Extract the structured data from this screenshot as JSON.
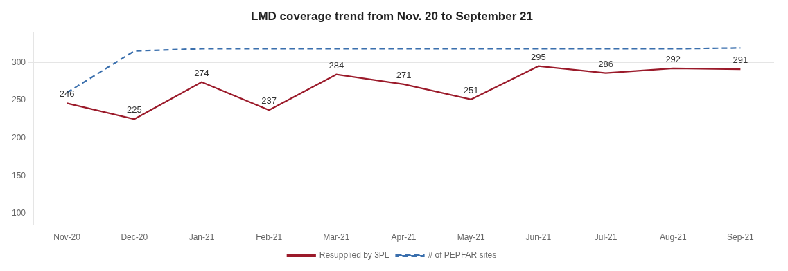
{
  "chart_data": {
    "type": "line",
    "title": "LMD coverage trend from Nov. 20 to September 21",
    "categories": [
      "Nov-20",
      "Dec-20",
      "Jan-21",
      "Feb-21",
      "Mar-21",
      "Apr-21",
      "May-21",
      "Jun-21",
      "Jul-21",
      "Aug-21",
      "Sep-21"
    ],
    "series": [
      {
        "name": "Resupplied by 3PL",
        "color": "#9b1a2a",
        "line_style": "solid",
        "data_labels": true,
        "values": [
          246,
          225,
          274,
          237,
          284,
          271,
          251,
          295,
          286,
          292,
          291
        ]
      },
      {
        "name": "# of PEPFAR sites",
        "color": "#3a6fad",
        "line_style": "dashed",
        "values": [
          260,
          315,
          318,
          318,
          318,
          318,
          318,
          318,
          318,
          318,
          319
        ]
      }
    ],
    "ylim": [
      85,
      340
    ],
    "yticks": [
      100,
      150,
      200,
      250,
      300
    ],
    "grid": true,
    "legend": "bottom"
  }
}
